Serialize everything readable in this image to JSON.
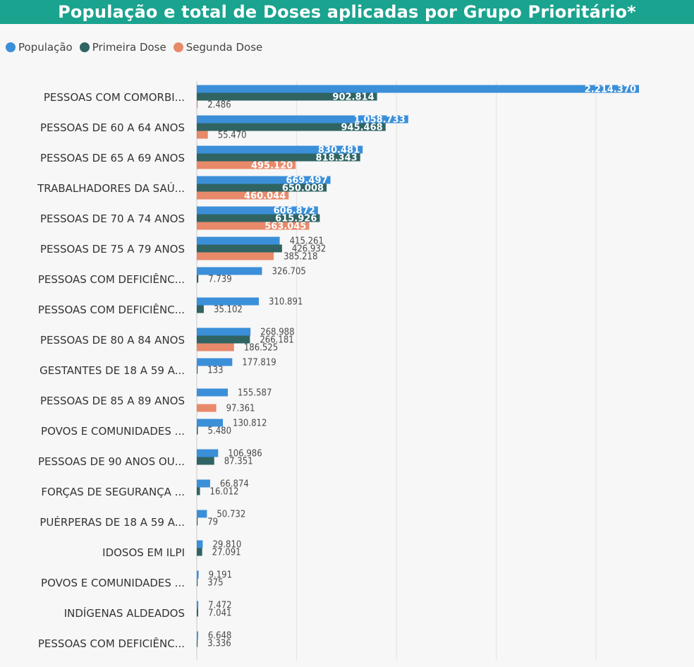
{
  "title": "População e total de Doses aplicadas por Grupo Prioritário*",
  "colors": {
    "header": "#1aa38e",
    "populacao": "#3b8fd9",
    "primeira": "#2f6463",
    "segunda": "#e8896a"
  },
  "chart_data": {
    "type": "bar",
    "orientation": "horizontal",
    "title": "População e total de Doses aplicadas por Grupo Prioritário*",
    "legend_position": "top-left",
    "grid": true,
    "xlim": [
      0,
      2300000
    ],
    "categories": [
      "PESSOAS COM COMORBI...",
      "PESSOAS DE 60 A 64 ANOS",
      "PESSOAS DE 65 A 69 ANOS",
      "TRABALHADORES DA SAÚ...",
      "PESSOAS DE 70 A 74 ANOS",
      "PESSOAS DE 75 A 79 ANOS",
      "PESSOAS COM DEFICIÊNC...",
      "PESSOAS COM DEFICIÊNC...",
      "PESSOAS DE 80 A 84 ANOS",
      "GESTANTES DE 18 A 59 A...",
      "PESSOAS DE 85 A 89 ANOS",
      "POVOS E COMUNIDADES ...",
      "PESSOAS DE 90 ANOS OU...",
      "FORÇAS DE SEGURANÇA ...",
      "PUÉRPERAS DE 18 A 59 A...",
      "IDOSOS EM ILPI",
      "POVOS E COMUNIDADES ...",
      "INDÍGENAS ALDEADOS",
      "PESSOAS COM DEFICIÊNC..."
    ],
    "series": [
      {
        "name": "População",
        "values": [
          2214370,
          1058733,
          830481,
          669497,
          606872,
          415261,
          326705,
          310891,
          268988,
          177819,
          155587,
          130812,
          106986,
          66874,
          50732,
          29810,
          9191,
          7472,
          6648
        ],
        "labels": [
          "2.214.370",
          "1.058.733",
          "830.481",
          "669.497",
          "606.872",
          "415.261",
          "326.705",
          "310.891",
          "268.988",
          "177.819",
          "155.587",
          "130.812",
          "106.986",
          "66.874",
          "50.732",
          "29.810",
          "9.191",
          "7.472",
          "6.648"
        ]
      },
      {
        "name": "Primeira Dose",
        "values": [
          902814,
          945468,
          818343,
          650008,
          615926,
          426932,
          7739,
          35102,
          266181,
          133,
          0,
          5480,
          87351,
          16012,
          79,
          27091,
          375,
          7041,
          3336
        ],
        "labels": [
          "902.814",
          "945.468",
          "818.343",
          "650.008",
          "615.926",
          "426.932",
          "7.739",
          "35.102",
          "266.181",
          "133",
          "",
          "5.480",
          "87.351",
          "16.012",
          "79",
          "27.091",
          "375",
          "7.041",
          "3.336"
        ]
      },
      {
        "name": "Segunda Dose",
        "values": [
          2486,
          55470,
          495120,
          460044,
          563045,
          385218,
          0,
          0,
          186525,
          0,
          97361,
          0,
          0,
          0,
          0,
          0,
          0,
          0,
          0
        ],
        "labels": [
          "2.486",
          "55.470",
          "495.120",
          "460.044",
          "563.045",
          "385.218",
          "",
          "",
          "186.525",
          "",
          "97.361",
          "",
          "",
          "",
          "",
          "",
          "",
          "",
          ""
        ]
      }
    ]
  }
}
